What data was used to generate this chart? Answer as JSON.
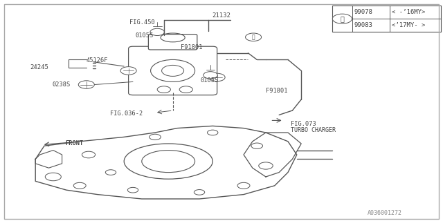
{
  "bg_color": "#ffffff",
  "border_color": "#000000",
  "line_color": "#555555",
  "text_color": "#444444",
  "part_number_label": "A036001272",
  "legend": {
    "rows": [
      {
        "part": "99078",
        "desc": "< -’16MY>"
      },
      {
        "part": "99083",
        "desc": "<’17MY- >"
      }
    ]
  },
  "figsize": [
    6.4,
    3.2
  ],
  "dpi": 100
}
